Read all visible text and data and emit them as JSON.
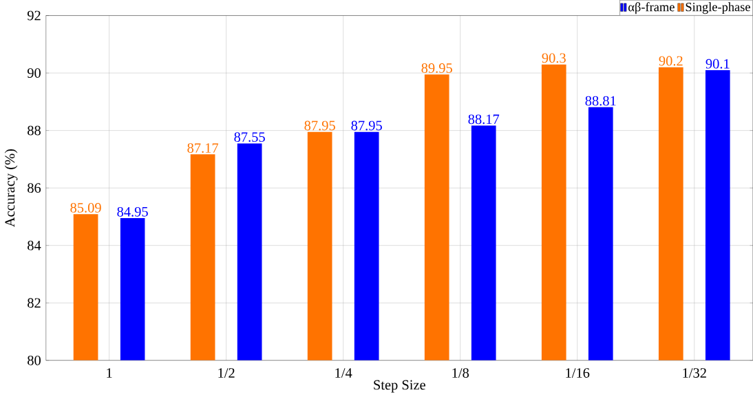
{
  "chart_data": {
    "type": "bar",
    "xlabel": "Step Size",
    "ylabel": "Accuracy (%)",
    "categories": [
      "1",
      "1/2",
      "1/4",
      "1/8",
      "1/16",
      "1/32"
    ],
    "series": [
      {
        "name": "αβ-frame",
        "color": "#0000ff",
        "values": [
          84.95,
          87.55,
          87.95,
          88.17,
          88.81,
          90.1
        ]
      },
      {
        "name": "Single-phase",
        "color": "#ff7300",
        "values": [
          85.09,
          87.17,
          87.95,
          89.95,
          90.3,
          90.2
        ]
      }
    ],
    "ylim": [
      80,
      92
    ],
    "yticks": [
      80,
      82,
      84,
      86,
      88,
      90,
      92
    ],
    "grid": true,
    "legend": "top right",
    "data_labels": true
  }
}
